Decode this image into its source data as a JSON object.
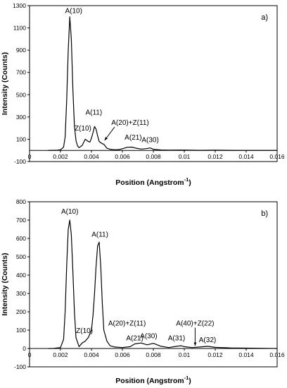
{
  "chart_data": [
    {
      "type": "line",
      "panel_label": "a)",
      "xlabel": "Position (Angstrom",
      "xlabel_sup": "-1",
      "xlabel_close": ")",
      "ylabel": "Intensity (Counts)",
      "xlim": [
        0,
        0.016
      ],
      "ylim": [
        -100,
        1300
      ],
      "x_ticks": [
        0,
        0.002,
        0.004,
        0.006,
        0.008,
        0.01,
        0.012,
        0.014,
        0.016
      ],
      "x_tick_labels": [
        "0",
        "0.002",
        "0.004",
        "0.006",
        "0.008",
        "0.01",
        "0.012",
        "0.014",
        "0.016"
      ],
      "y_ticks": [
        -100,
        100,
        300,
        500,
        700,
        900,
        1100,
        1300
      ],
      "y_tick_labels": [
        "-100",
        "100",
        "300",
        "500",
        "700",
        "900",
        "1100",
        "1300"
      ],
      "series": [
        {
          "x": [
            0.0012,
            0.0015,
            0.0018,
            0.002,
            0.0022,
            0.0023,
            0.0024,
            0.0025,
            0.0026,
            0.0027,
            0.0028,
            0.0029,
            0.003,
            0.0031,
            0.0032,
            0.0034,
            0.0036,
            0.0038,
            0.0039,
            0.004,
            0.0041,
            0.0042,
            0.0043,
            0.0044,
            0.0045,
            0.0047,
            0.0048,
            0.005,
            0.0052,
            0.0055,
            0.0058,
            0.006,
            0.0063,
            0.0066,
            0.0069,
            0.0072,
            0.0075,
            0.0078,
            0.008,
            0.0085,
            0.009,
            0.01,
            0.011,
            0.012,
            0.013,
            0.014,
            0.016
          ],
          "y": [
            0,
            1,
            2,
            5,
            30,
            120,
            450,
            900,
            1200,
            1000,
            550,
            220,
            90,
            40,
            25,
            45,
            100,
            80,
            75,
            110,
            160,
            215,
            190,
            130,
            80,
            60,
            55,
            20,
            10,
            5,
            8,
            15,
            28,
            30,
            20,
            12,
            15,
            22,
            10,
            4,
            2,
            3,
            1,
            2,
            1,
            0,
            0
          ]
        }
      ],
      "annotations": [
        {
          "text": "A(10)",
          "x": 0.00285,
          "y": 1235
        },
        {
          "text": "Z(10)",
          "x": 0.00345,
          "y": 180
        },
        {
          "text": "A(11)",
          "x": 0.00415,
          "y": 320
        },
        {
          "text": "A(20)+Z(11)",
          "x": 0.0065,
          "y": 230,
          "arrow_to": [
            0.00485,
            90
          ]
        },
        {
          "text": "A(21)",
          "x": 0.0067,
          "y": 95
        },
        {
          "text": "A(30)",
          "x": 0.0078,
          "y": 75
        }
      ]
    },
    {
      "type": "line",
      "panel_label": "b)",
      "xlabel": "Position (Angstrom",
      "xlabel_sup": "-1",
      "xlabel_close": ")",
      "ylabel": "Intensity (Counts)",
      "xlim": [
        0,
        0.016
      ],
      "ylim": [
        -100,
        800
      ],
      "x_ticks": [
        0,
        0.002,
        0.004,
        0.006,
        0.008,
        0.01,
        0.012,
        0.014,
        0.016
      ],
      "x_tick_labels": [
        "0",
        "0.002",
        "0.004",
        "0.006",
        "0.008",
        "0.01",
        "0.012",
        "0.014",
        "0.016"
      ],
      "y_ticks": [
        -100,
        0,
        100,
        200,
        300,
        400,
        500,
        600,
        700,
        800
      ],
      "y_tick_labels": [
        "-100",
        "0",
        "100",
        "200",
        "300",
        "400",
        "500",
        "600",
        "700",
        "800"
      ],
      "series": [
        {
          "x": [
            0.0012,
            0.0015,
            0.0018,
            0.002,
            0.0022,
            0.0023,
            0.0024,
            0.0025,
            0.0026,
            0.0027,
            0.0028,
            0.0029,
            0.003,
            0.0032,
            0.0034,
            0.0036,
            0.0038,
            0.004,
            0.0041,
            0.0042,
            0.0043,
            0.0044,
            0.0045,
            0.0046,
            0.0047,
            0.0048,
            0.005,
            0.0052,
            0.0055,
            0.006,
            0.0065,
            0.0068,
            0.0072,
            0.0076,
            0.008,
            0.0085,
            0.009,
            0.0095,
            0.0098,
            0.01,
            0.0105,
            0.011,
            0.0115,
            0.012,
            0.013,
            0.014,
            0.015,
            0.016
          ],
          "y": [
            0,
            0,
            3,
            5,
            50,
            200,
            450,
            650,
            700,
            620,
            420,
            200,
            60,
            10,
            30,
            40,
            60,
            100,
            180,
            300,
            450,
            560,
            580,
            450,
            250,
            100,
            40,
            15,
            8,
            5,
            10,
            25,
            30,
            20,
            28,
            12,
            5,
            12,
            15,
            10,
            5,
            8,
            12,
            6,
            3,
            2,
            1,
            0
          ]
        }
      ],
      "annotations": [
        {
          "text": "A(10)",
          "x": 0.0026,
          "y": 735
        },
        {
          "text": "Z(10)",
          "x": 0.00355,
          "y": 85
        },
        {
          "text": "A(11)",
          "x": 0.00455,
          "y": 610
        },
        {
          "text": "A(20)+Z(11)",
          "x": 0.0063,
          "y": 125
        },
        {
          "text": "A(21)",
          "x": 0.0068,
          "y": 45
        },
        {
          "text": "A(30)",
          "x": 0.0077,
          "y": 55
        },
        {
          "text": "A(31)",
          "x": 0.0095,
          "y": 45
        },
        {
          "text": "A(40)+Z(22)",
          "x": 0.0107,
          "y": 125,
          "arrow_to": [
            0.0107,
            15
          ]
        },
        {
          "text": "A(32)",
          "x": 0.0115,
          "y": 35
        }
      ]
    }
  ]
}
